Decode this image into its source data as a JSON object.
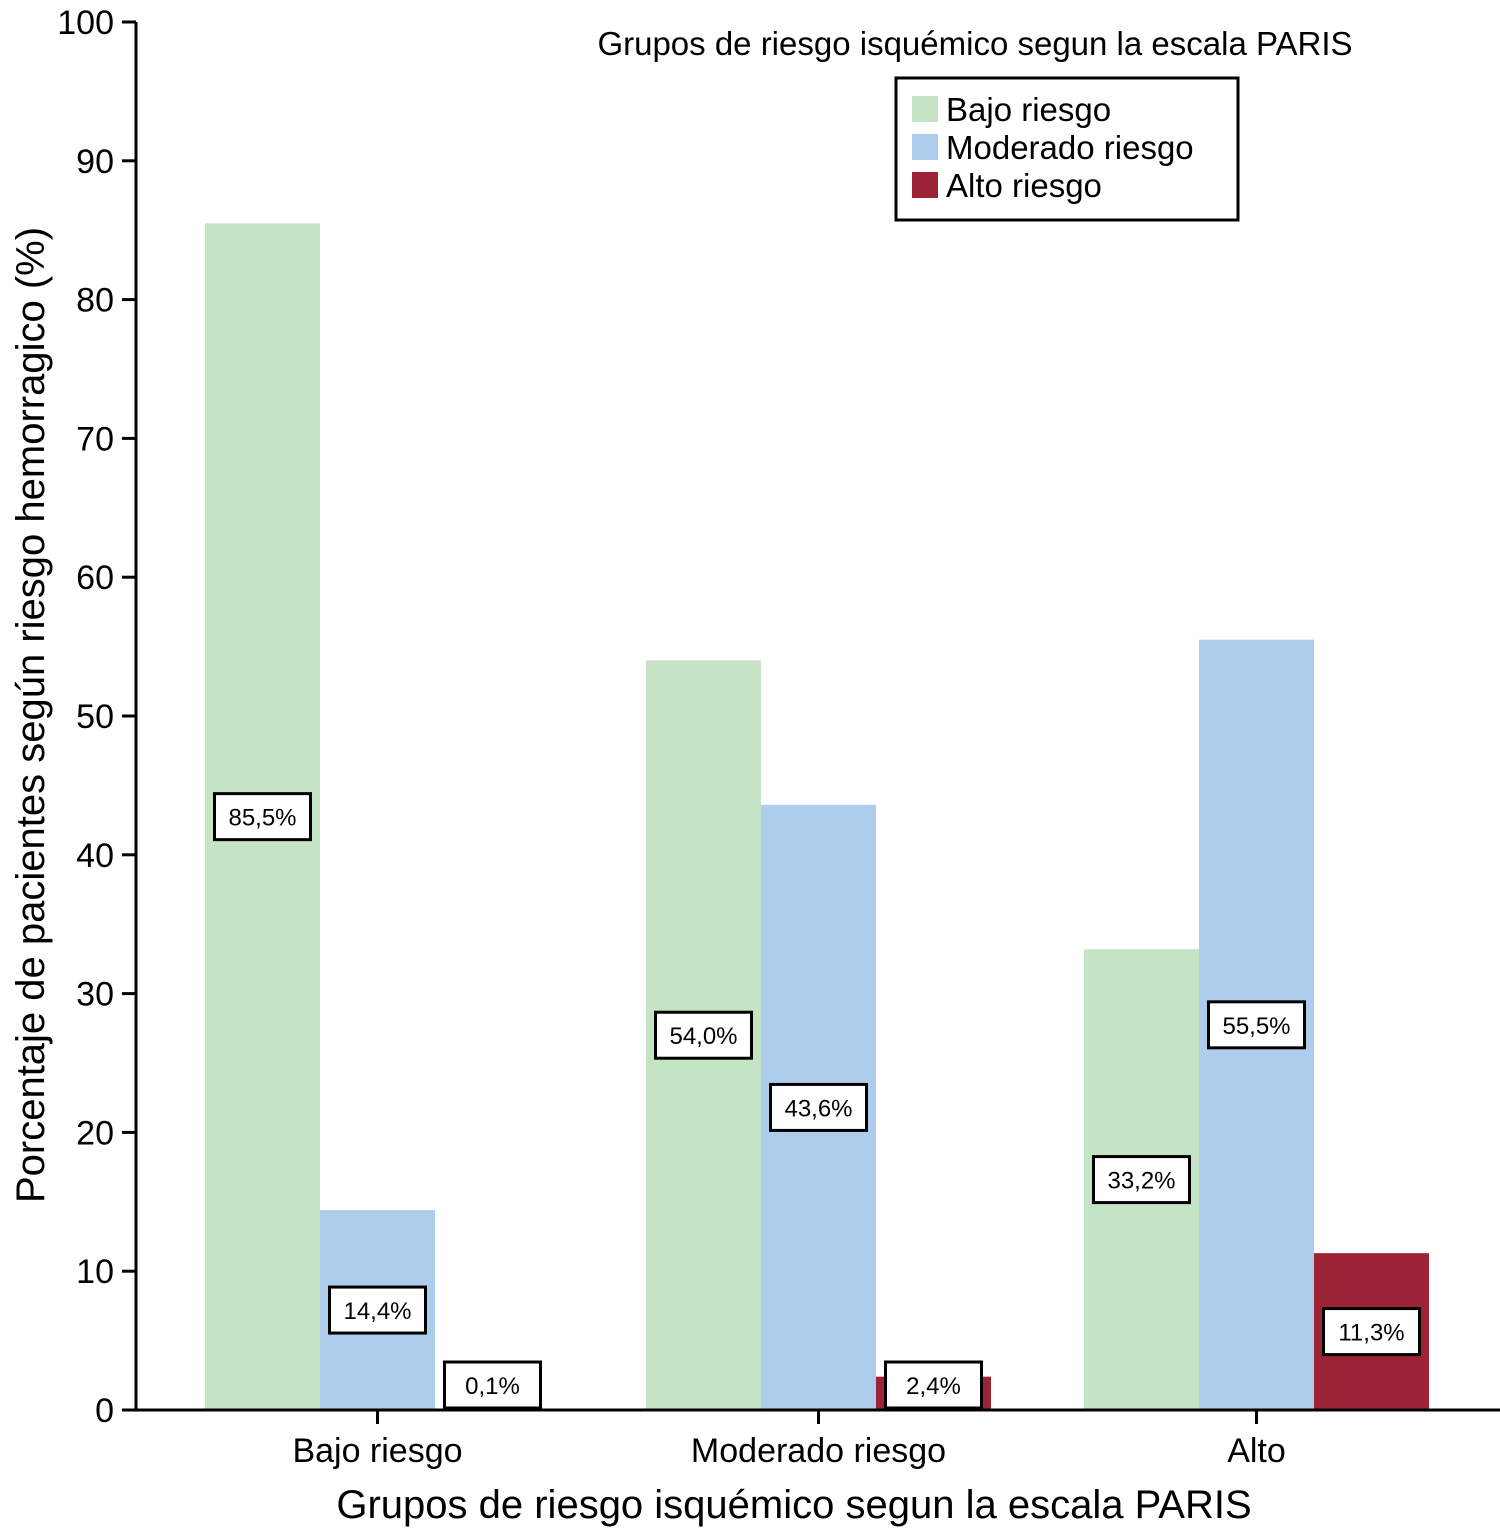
{
  "chart_data": {
    "type": "bar",
    "xlabel": "Grupos de riesgo isquémico segun la escala PARIS",
    "ylabel": "Porcentaje de pacientes según riesgo hemorragico (%)",
    "ylim": [
      0,
      100
    ],
    "yticks": [
      0,
      10,
      20,
      30,
      40,
      50,
      60,
      70,
      80,
      90,
      100
    ],
    "grid": false,
    "categories": [
      "Bajo riesgo",
      "Moderado riesgo",
      "Alto"
    ],
    "legend": {
      "title": "Grupos de riesgo isquémico segun la escala PARIS",
      "placement": "top-right"
    },
    "series": [
      {
        "name": "Bajo riesgo",
        "color": "#c5e4c5",
        "values": [
          85.5,
          54.0,
          33.2
        ],
        "labels": [
          "85,5%",
          "54,0%",
          "33,2%"
        ]
      },
      {
        "name": "Moderado riesgo",
        "color": "#aecdec",
        "values": [
          14.4,
          43.6,
          55.5
        ],
        "labels": [
          "14,4%",
          "43,6%",
          "55,5%"
        ]
      },
      {
        "name": "Alto riesgo",
        "color": "#9b2335",
        "values": [
          0.1,
          2.4,
          11.3
        ],
        "labels": [
          "0,1%",
          "2,4%",
          "11,3%"
        ]
      }
    ]
  }
}
